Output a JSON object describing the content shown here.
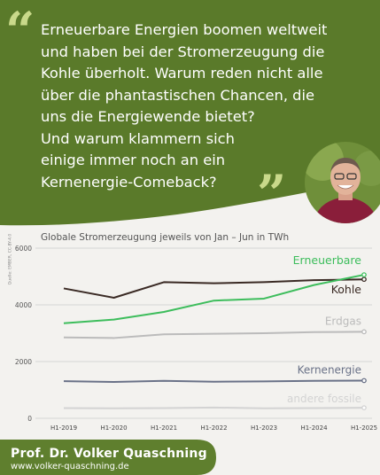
{
  "quote": {
    "text": "Erneuerbare Energien boomen weltweit\nund haben bei der Stromerzeugung die\nKohle überholt. Warum reden nicht alle\nüber die phantastischen Chancen, die\nuns die Energiewende bietet?\nUnd warum klammern sich\neinige immer noch an ein\nKernenergie-Comeback?",
    "open_mark": "“",
    "close_mark": "”"
  },
  "colors": {
    "banner_green": "#5a7a2a",
    "quote_mark_green": "#c9d98a",
    "footer_green": "#5f7f2e",
    "background": "#f3f2ef"
  },
  "source_note": "Quelle: EMBER, CC-BY-4.0",
  "footer": {
    "author": "Prof. Dr. Volker Quaschning",
    "url": "www.volker-quaschning.de"
  },
  "chart_data": {
    "type": "line",
    "title": "Globale Stromerzeugung jeweils von Jan – Jun in TWh",
    "categories": [
      "H1-2019",
      "H1-2020",
      "H1-2021",
      "H1-2022",
      "H1-2023",
      "H1-2024",
      "H1-2025"
    ],
    "ylim": [
      0,
      6000
    ],
    "yticks": [
      0,
      2000,
      4000,
      6000
    ],
    "grid": true,
    "series": [
      {
        "name": "Erneuerbare",
        "color": "#3dbd5c",
        "values": [
          3350,
          3480,
          3750,
          4150,
          4220,
          4700,
          5060
        ]
      },
      {
        "name": "Kohle",
        "color": "#3a2a24",
        "values": [
          4580,
          4250,
          4800,
          4760,
          4800,
          4870,
          4900
        ]
      },
      {
        "name": "Erdgas",
        "color": "#bbbbbb",
        "values": [
          2850,
          2830,
          2960,
          2980,
          3000,
          3040,
          3050
        ]
      },
      {
        "name": "Kernenergie",
        "color": "#6a7288",
        "values": [
          1310,
          1280,
          1320,
          1290,
          1300,
          1320,
          1330
        ]
      },
      {
        "name": "andere fossile",
        "color": "#d3d3d3",
        "values": [
          360,
          350,
          360,
          380,
          350,
          360,
          370
        ]
      }
    ]
  }
}
